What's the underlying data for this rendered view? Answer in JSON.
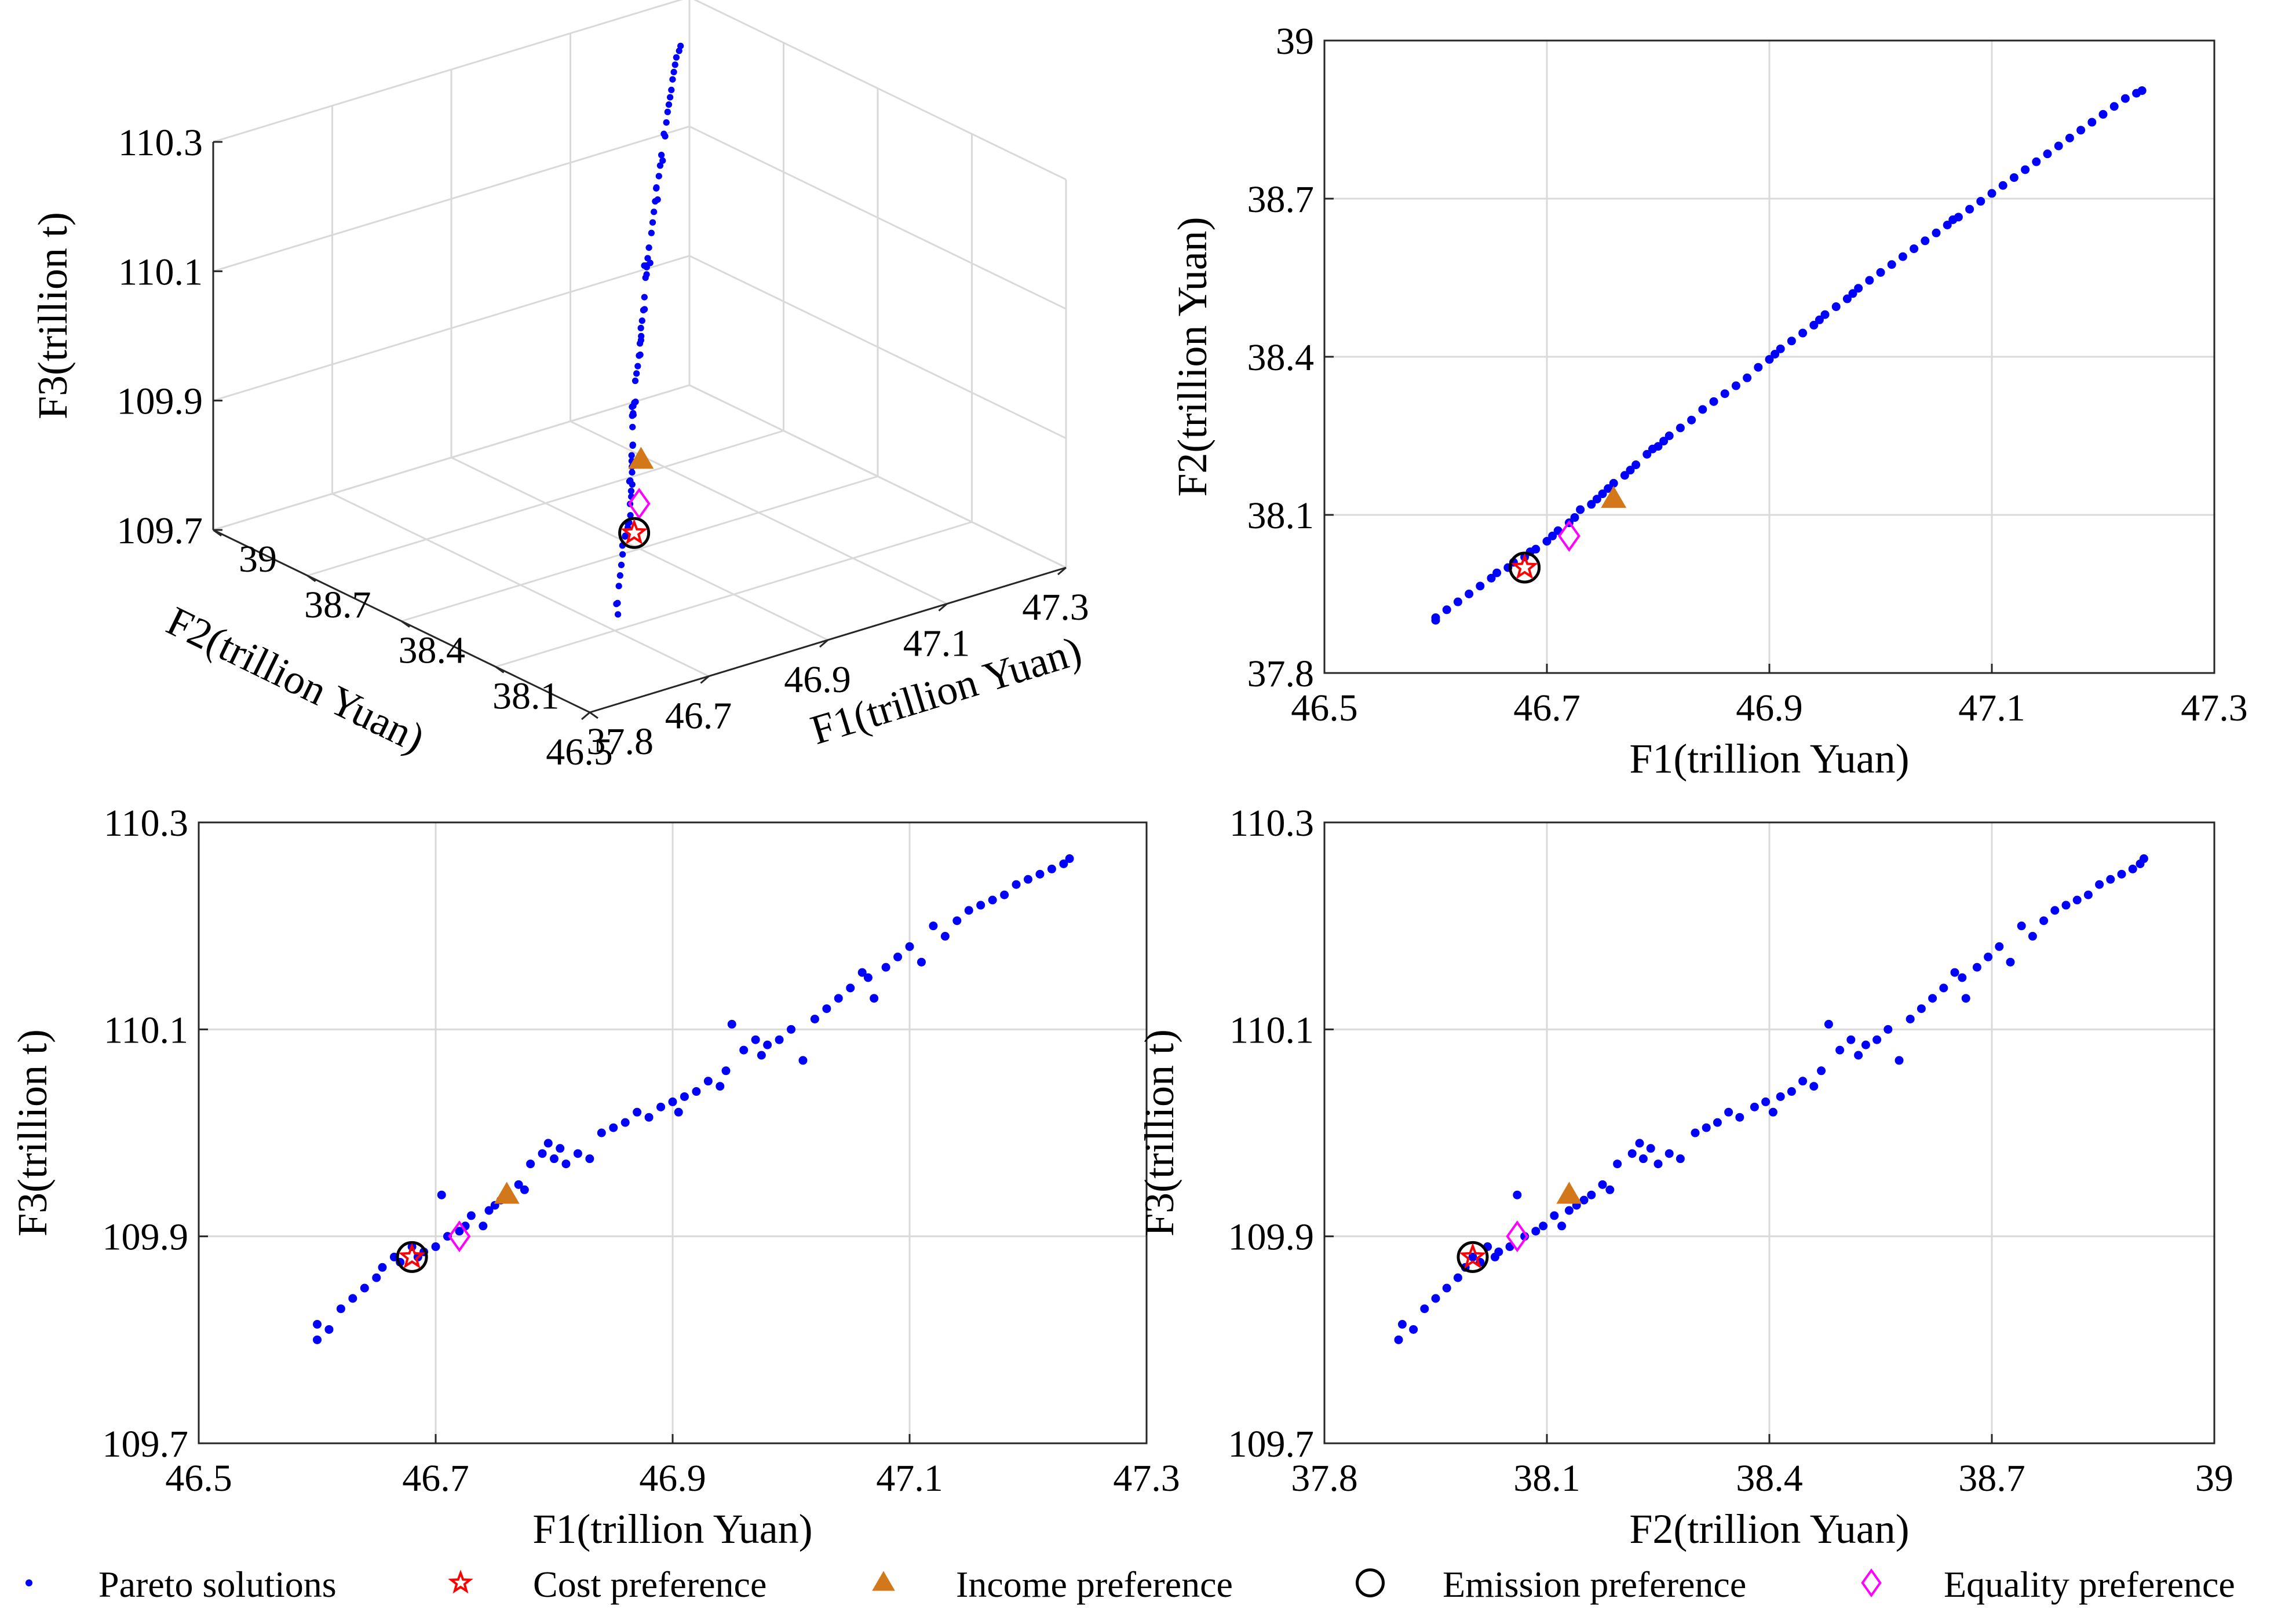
{
  "figure": {
    "legend": [
      {
        "key": "pareto",
        "label": "Pareto solutions",
        "marker": "dot",
        "color": "#0000ff"
      },
      {
        "key": "cost",
        "label": "Cost preference",
        "marker": "star",
        "color": "#ff0000"
      },
      {
        "key": "income",
        "label": "Income preference",
        "marker": "triangle",
        "color": "#d2771a"
      },
      {
        "key": "emission",
        "label": "Emission preference",
        "marker": "circle",
        "color": "#000000"
      },
      {
        "key": "equality",
        "label": "Equality preference",
        "marker": "diamond",
        "color": "#ff00ff"
      }
    ]
  },
  "chart_data": [
    {
      "id": "f1-f2-f3-3d",
      "type": "scatter",
      "title": "",
      "xlabel": "F1(trillion Yuan)",
      "ylabel": "F2(trillion Yuan)",
      "zlabel": "F3(trillion t)",
      "xlim": [
        46.5,
        47.3
      ],
      "ylim": [
        37.8,
        39.0
      ],
      "zlim": [
        109.7,
        110.3
      ],
      "xticks": [
        "46.5",
        "46.7",
        "46.9",
        "47.1",
        "47.3"
      ],
      "yticks": [
        "37.8",
        "38.1",
        "38.4",
        "38.7",
        "39"
      ],
      "zticks": [
        "109.7",
        "109.9",
        "110.1",
        "110.3"
      ],
      "grid": true,
      "series_ref": "pareto_f1_f2_f3"
    },
    {
      "id": "f1-f2",
      "type": "scatter",
      "title": "",
      "xlabel": "F1(trillion Yuan)",
      "ylabel": "F2(trillion Yuan)",
      "xlim": [
        46.5,
        47.3
      ],
      "ylim": [
        37.8,
        39.0
      ],
      "xticks": [
        "46.5",
        "46.7",
        "46.9",
        "47.1",
        "47.3"
      ],
      "yticks": [
        "37.8",
        "38.1",
        "38.4",
        "38.7",
        "39"
      ],
      "grid": true,
      "x_series": "F1",
      "y_series": "F2"
    },
    {
      "id": "f1-f3",
      "type": "scatter",
      "title": "",
      "xlabel": "F1(trillion Yuan)",
      "ylabel": "F3(trillion t)",
      "xlim": [
        46.5,
        47.3
      ],
      "ylim": [
        109.7,
        110.3
      ],
      "xticks": [
        "46.5",
        "46.7",
        "46.9",
        "47.1",
        "47.3"
      ],
      "yticks": [
        "109.7",
        "109.9",
        "110.1",
        "110.3"
      ],
      "grid": true,
      "x_series": "F1",
      "y_series": "F3"
    },
    {
      "id": "f2-f3",
      "type": "scatter",
      "title": "",
      "xlabel": "F2(trillion Yuan)",
      "ylabel": "F3(trillion t)",
      "xlim": [
        37.8,
        39.0
      ],
      "ylim": [
        109.7,
        110.3
      ],
      "xticks": [
        "37.8",
        "38.1",
        "38.4",
        "38.7",
        "39"
      ],
      "yticks": [
        "109.7",
        "109.9",
        "110.1",
        "110.3"
      ],
      "grid": true,
      "x_series": "F2",
      "y_series": "F3"
    }
  ],
  "solutions": {
    "pareto": {
      "F1": [
        46.6,
        46.6,
        46.61,
        46.62,
        46.63,
        46.64,
        46.65,
        46.655,
        46.665,
        46.67,
        46.68,
        46.685,
        46.69,
        46.7,
        46.705,
        46.71,
        46.72,
        46.725,
        46.73,
        46.74,
        46.745,
        46.75,
        46.755,
        46.76,
        46.77,
        46.775,
        46.78,
        46.79,
        46.795,
        46.8,
        46.805,
        46.81,
        46.82,
        46.83,
        46.84,
        46.85,
        46.86,
        46.87,
        46.88,
        46.89,
        46.9,
        46.905,
        46.91,
        46.92,
        46.93,
        46.94,
        46.945,
        46.95,
        46.96,
        46.97,
        46.975,
        46.98,
        46.99,
        47.0,
        47.01,
        47.02,
        47.03,
        47.04,
        47.05,
        47.06,
        47.065,
        47.07,
        47.08,
        47.09,
        47.1,
        47.11,
        47.12,
        47.13,
        47.14,
        47.15,
        47.16,
        47.17,
        47.18,
        47.19,
        47.2,
        47.21,
        47.22,
        47.23,
        47.235
      ],
      "F2": [
        37.9,
        37.905,
        37.92,
        37.935,
        37.95,
        37.965,
        37.98,
        37.99,
        38.0,
        38.01,
        38.02,
        38.03,
        38.035,
        38.05,
        38.06,
        38.07,
        38.085,
        38.095,
        38.11,
        38.12,
        38.13,
        38.14,
        38.15,
        38.16,
        38.175,
        38.185,
        38.195,
        38.215,
        38.225,
        38.23,
        38.24,
        38.25,
        38.265,
        38.28,
        38.3,
        38.315,
        38.33,
        38.345,
        38.36,
        38.38,
        38.395,
        38.405,
        38.415,
        38.43,
        38.445,
        38.46,
        38.47,
        38.48,
        38.495,
        38.51,
        38.52,
        38.53,
        38.545,
        38.56,
        38.575,
        38.59,
        38.605,
        38.62,
        38.635,
        38.65,
        38.66,
        38.665,
        38.68,
        38.695,
        38.71,
        38.725,
        38.74,
        38.755,
        38.77,
        38.785,
        38.8,
        38.815,
        38.83,
        38.845,
        38.86,
        38.875,
        38.89,
        38.9,
        38.905
      ],
      "F3": [
        109.8,
        109.815,
        109.81,
        109.83,
        109.84,
        109.85,
        109.86,
        109.87,
        109.88,
        109.875,
        109.89,
        109.88,
        109.885,
        109.89,
        109.94,
        109.9,
        109.905,
        109.91,
        109.92,
        109.91,
        109.925,
        109.93,
        109.935,
        109.94,
        109.95,
        109.945,
        109.97,
        109.98,
        109.99,
        109.975,
        109.985,
        109.97,
        109.98,
        109.975,
        110.0,
        110.005,
        110.01,
        110.02,
        110.015,
        110.025,
        110.03,
        110.02,
        110.035,
        110.04,
        110.05,
        110.045,
        110.06,
        110.105,
        110.08,
        110.09,
        110.075,
        110.085,
        110.09,
        110.1,
        110.07,
        110.11,
        110.12,
        110.13,
        110.14,
        110.155,
        110.15,
        110.13,
        110.16,
        110.17,
        110.18,
        110.165,
        110.2,
        110.19,
        110.205,
        110.215,
        110.22,
        110.225,
        110.23,
        110.24,
        110.245,
        110.25,
        110.255,
        110.26,
        110.265
      ]
    },
    "preferences": {
      "cost": {
        "F1": 46.68,
        "F2": 38.0,
        "F3": 109.88
      },
      "income": {
        "F1": 46.76,
        "F2": 38.13,
        "F3": 109.94
      },
      "emission": {
        "F1": 46.68,
        "F2": 38.0,
        "F3": 109.88
      },
      "equality": {
        "F1": 46.72,
        "F2": 38.06,
        "F3": 109.9
      }
    }
  }
}
